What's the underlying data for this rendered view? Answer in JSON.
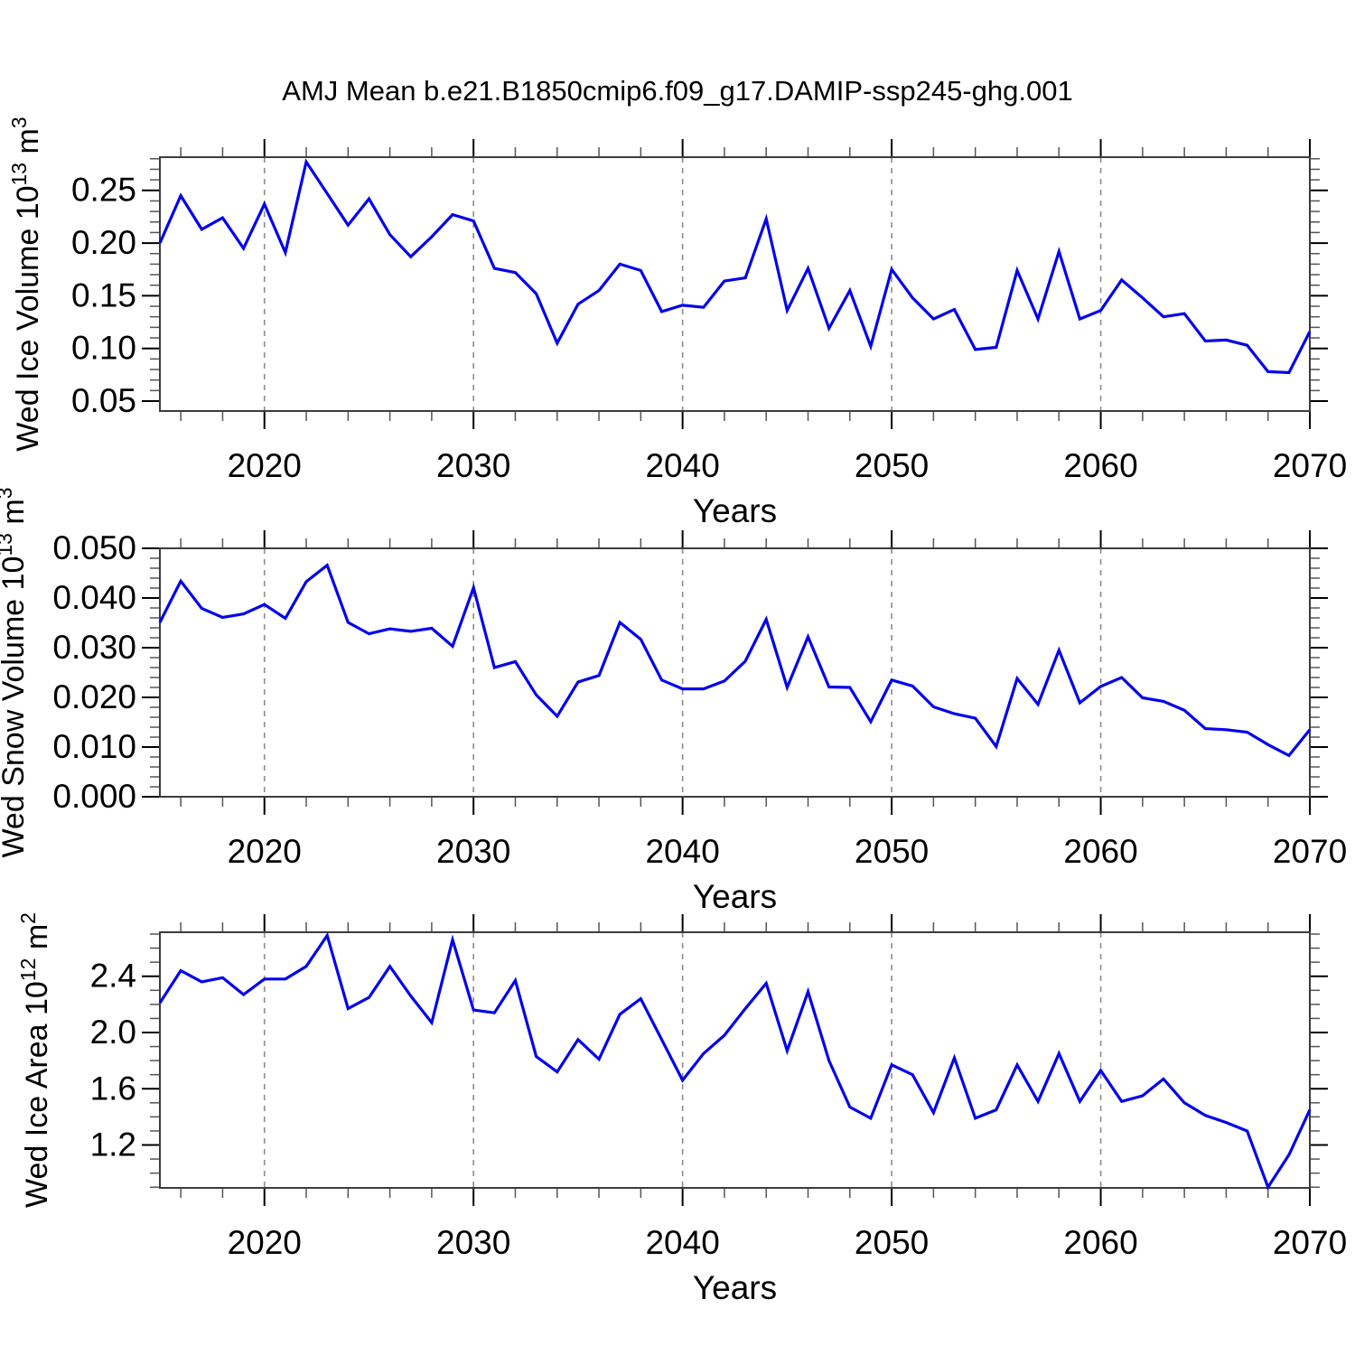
{
  "title": "AMJ Mean b.e21.B1850cmip6.f09_g17.DAMIP-ssp245-ghg.001",
  "colors": {
    "line": "#0202ee",
    "grid": "#8c8c8c",
    "box": "#3c3c3c",
    "major_tick": "#000000",
    "minor_tick": "#555555",
    "text": "#000000",
    "background": "#ffffff"
  },
  "x_axis": {
    "label": "Years",
    "xlim": [
      2015,
      2070
    ],
    "major_ticks": [
      2020,
      2030,
      2040,
      2050,
      2060,
      2070
    ],
    "major_labels": [
      "2020",
      "2030",
      "2040",
      "2050",
      "2060",
      "2070"
    ],
    "minor_step_years": 2,
    "grid_years": [
      2020,
      2030,
      2040,
      2050,
      2060
    ],
    "years": [
      2015,
      2016,
      2017,
      2018,
      2019,
      2020,
      2021,
      2022,
      2023,
      2024,
      2025,
      2026,
      2027,
      2028,
      2029,
      2030,
      2031,
      2032,
      2033,
      2034,
      2035,
      2036,
      2037,
      2038,
      2039,
      2040,
      2041,
      2042,
      2043,
      2044,
      2045,
      2046,
      2047,
      2048,
      2049,
      2050,
      2051,
      2052,
      2053,
      2054,
      2055,
      2056,
      2057,
      2058,
      2059,
      2060,
      2061,
      2062,
      2063,
      2064,
      2065,
      2066,
      2067,
      2068,
      2069,
      2070
    ]
  },
  "chart_data": [
    {
      "type": "line",
      "name": "ice-volume",
      "ylabel_plain": "Wed Ice Volume 10^13 m^3",
      "ylabel_parts": [
        {
          "text": "Wed Ice Volume 10",
          "sup": false
        },
        {
          "text": "13",
          "sup": true
        },
        {
          "text": " m",
          "sup": false
        },
        {
          "text": "3",
          "sup": true
        }
      ],
      "xlabel": "Years",
      "ylim": [
        0.0406,
        0.2815
      ],
      "yticks": {
        "values": [
          0.05,
          0.1,
          0.15,
          0.2,
          0.25
        ],
        "labels": [
          "0.05",
          "0.10",
          "0.15",
          "0.20",
          "0.25"
        ],
        "minor_step": 0.01
      },
      "grid": "vertical-dashed",
      "legend": "none",
      "values": [
        0.2,
        0.245,
        0.213,
        0.224,
        0.195,
        0.237,
        0.191,
        0.277,
        0.247,
        0.217,
        0.242,
        0.208,
        0.187,
        0.206,
        0.227,
        0.221,
        0.176,
        0.172,
        0.152,
        0.105,
        0.142,
        0.155,
        0.18,
        0.174,
        0.135,
        0.141,
        0.139,
        0.164,
        0.167,
        0.223,
        0.136,
        0.176,
        0.119,
        0.155,
        0.102,
        0.175,
        0.148,
        0.128,
        0.137,
        0.099,
        0.101,
        0.174,
        0.128,
        0.192,
        0.128,
        0.136,
        0.165,
        0.148,
        0.13,
        0.133,
        0.107,
        0.108,
        0.103,
        0.078,
        0.077,
        0.116
      ]
    },
    {
      "type": "line",
      "name": "snow-volume",
      "ylabel_plain": "Wed Snow Volume 10^13 m^3",
      "ylabel_parts": [
        {
          "text": "Wed Snow Volume 10",
          "sup": false
        },
        {
          "text": "13",
          "sup": true
        },
        {
          "text": " m",
          "sup": false
        },
        {
          "text": "3",
          "sup": true
        }
      ],
      "xlabel": "Years",
      "ylim": [
        0.0,
        0.05
      ],
      "yticks": {
        "values": [
          0.0,
          0.01,
          0.02,
          0.03,
          0.04,
          0.05
        ],
        "labels": [
          "0.000",
          "0.010",
          "0.020",
          "0.030",
          "0.040",
          "0.050"
        ],
        "minor_step": 0.002
      },
      "grid": "vertical-dashed",
      "legend": "none",
      "values": [
        0.0351,
        0.0434,
        0.0379,
        0.0361,
        0.0368,
        0.0387,
        0.0359,
        0.0433,
        0.0466,
        0.0351,
        0.0328,
        0.0338,
        0.0333,
        0.0339,
        0.0303,
        0.0421,
        0.026,
        0.0272,
        0.0205,
        0.0162,
        0.0231,
        0.0244,
        0.0351,
        0.0317,
        0.0235,
        0.0217,
        0.0217,
        0.0233,
        0.0273,
        0.0357,
        0.022,
        0.0322,
        0.0221,
        0.022,
        0.0151,
        0.0235,
        0.0223,
        0.0181,
        0.0167,
        0.0158,
        0.0101,
        0.0238,
        0.0186,
        0.0295,
        0.0189,
        0.0222,
        0.024,
        0.0199,
        0.0192,
        0.0174,
        0.0137,
        0.0135,
        0.013,
        0.0105,
        0.0083,
        0.0135
      ]
    },
    {
      "type": "line",
      "name": "ice-area",
      "ylabel_plain": "Wed Ice Area 10^12 m^2",
      "ylabel_parts": [
        {
          "text": "Wed Ice Area 10",
          "sup": false
        },
        {
          "text": "12",
          "sup": true
        },
        {
          "text": " m",
          "sup": false
        },
        {
          "text": "2",
          "sup": true
        }
      ],
      "xlabel": "Years",
      "ylim": [
        0.895,
        2.713
      ],
      "yticks": {
        "values": [
          1.2,
          1.6,
          2.0,
          2.4
        ],
        "labels": [
          "1.2",
          "1.6",
          "2.0",
          "2.4"
        ],
        "minor_step": 0.1
      },
      "grid": "vertical-dashed",
      "legend": "none",
      "values": [
        2.21,
        2.44,
        2.36,
        2.39,
        2.27,
        2.38,
        2.38,
        2.47,
        2.69,
        2.17,
        2.25,
        2.47,
        2.26,
        2.07,
        2.66,
        2.16,
        2.14,
        2.37,
        1.83,
        1.72,
        1.95,
        1.81,
        2.13,
        2.24,
        1.95,
        1.66,
        1.85,
        1.98,
        2.17,
        2.35,
        1.87,
        2.29,
        1.8,
        1.47,
        1.39,
        1.77,
        1.7,
        1.43,
        1.82,
        1.39,
        1.45,
        1.77,
        1.51,
        1.85,
        1.51,
        1.73,
        1.51,
        1.55,
        1.67,
        1.5,
        1.41,
        1.36,
        1.3,
        0.9,
        1.13,
        1.45
      ]
    }
  ]
}
